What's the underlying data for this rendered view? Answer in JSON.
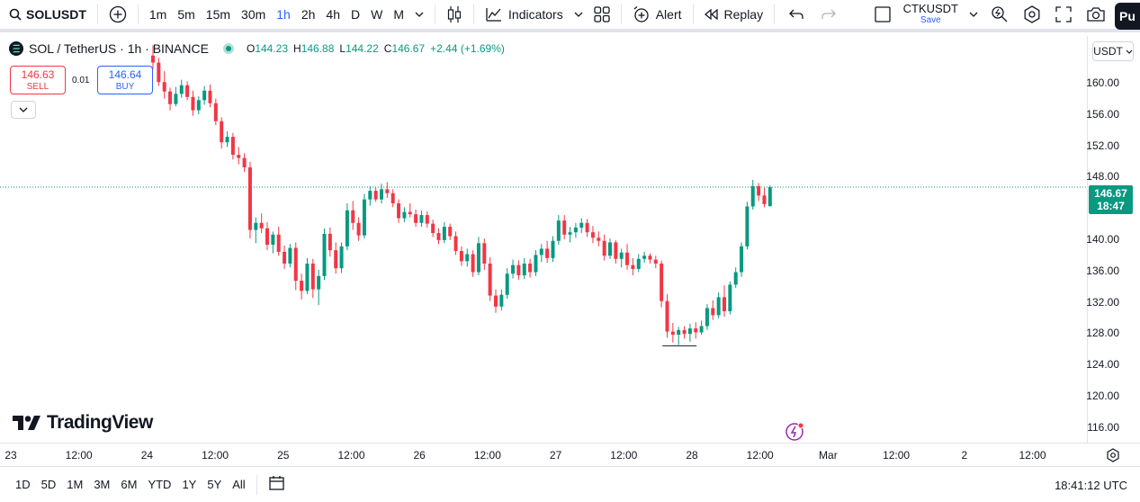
{
  "toolbar": {
    "symbol": "SOLUSDT",
    "timeframes": [
      "1m",
      "5m",
      "15m",
      "30m",
      "1h",
      "2h",
      "4h",
      "D",
      "W",
      "M"
    ],
    "active_timeframe": "1h",
    "indicators_label": "Indicators",
    "alert_label": "Alert",
    "replay_label": "Replay",
    "layout_name": "CTKUSDT",
    "layout_save": "Save",
    "publish_label": "Pu"
  },
  "legend": {
    "pair": "SOL / TetherUS · 1h · BINANCE",
    "o_label": "O",
    "o": "144.23",
    "h_label": "H",
    "h": "146.88",
    "l_label": "L",
    "l": "144.22",
    "c_label": "C",
    "c": "146.67",
    "change": "+2.44 (+1.69%)"
  },
  "trade": {
    "sell_price": "146.63",
    "sell_label": "SELL",
    "spread": "0.01",
    "buy_price": "146.64",
    "buy_label": "BUY"
  },
  "price_scale": {
    "currency": "USDT",
    "labels": [
      "160.00",
      "156.00",
      "152.00",
      "148.00",
      "140.00",
      "136.00",
      "132.00",
      "128.00",
      "124.00",
      "120.00",
      "116.00"
    ],
    "current_price": "146.67",
    "countdown": "18:47"
  },
  "time_scale": {
    "labels": [
      "23",
      "12:00",
      "24",
      "12:00",
      "25",
      "12:00",
      "26",
      "12:00",
      "27",
      "12:00",
      "28",
      "12:00",
      "Mar",
      "12:00",
      "2",
      "12:00"
    ]
  },
  "bottom": {
    "ranges": [
      "1D",
      "5D",
      "1M",
      "3M",
      "6M",
      "YTD",
      "1Y",
      "5Y",
      "All"
    ],
    "clock": "18:41:12 UTC"
  },
  "brand": "TradingView",
  "colors": {
    "up": "#089981",
    "down": "#f23645",
    "accent": "#2962ff"
  },
  "chart_data": {
    "type": "candlestick",
    "symbol": "SOL / TetherUS",
    "interval": "1h",
    "exchange": "BINANCE",
    "ylim": [
      114,
      166
    ],
    "current_price": 146.67,
    "candles": [
      [
        163.5,
        164.8,
        161.8,
        162.6
      ],
      [
        162.6,
        163.2,
        159.6,
        160.1
      ],
      [
        160.1,
        161.5,
        158.0,
        158.9
      ],
      [
        158.9,
        159.4,
        156.5,
        157.3
      ],
      [
        157.3,
        159.5,
        157.0,
        158.6
      ],
      [
        158.6,
        160.4,
        158.1,
        159.7
      ],
      [
        159.7,
        160.2,
        157.8,
        158.2
      ],
      [
        158.2,
        159.0,
        155.8,
        156.5
      ],
      [
        156.5,
        158.3,
        156.0,
        157.8
      ],
      [
        157.8,
        159.6,
        157.2,
        159.0
      ],
      [
        159.0,
        159.8,
        156.9,
        157.4
      ],
      [
        157.4,
        158.0,
        154.6,
        155.1
      ],
      [
        155.1,
        155.6,
        151.6,
        152.4
      ],
      [
        152.4,
        153.8,
        151.8,
        153.1
      ],
      [
        153.1,
        153.6,
        150.2,
        150.8
      ],
      [
        150.8,
        151.8,
        149.6,
        150.4
      ],
      [
        150.4,
        151.0,
        148.6,
        149.2
      ],
      [
        149.2,
        149.9,
        140.1,
        141.2
      ],
      [
        141.2,
        142.8,
        139.5,
        142.1
      ],
      [
        142.1,
        143.3,
        140.8,
        141.4
      ],
      [
        141.4,
        142.2,
        138.6,
        139.3
      ],
      [
        139.3,
        141.0,
        138.2,
        140.6
      ],
      [
        140.6,
        141.6,
        137.9,
        138.4
      ],
      [
        138.4,
        139.2,
        136.2,
        136.9
      ],
      [
        136.9,
        139.4,
        136.4,
        138.9
      ],
      [
        138.9,
        139.6,
        133.5,
        134.7
      ],
      [
        134.7,
        135.6,
        132.3,
        133.4
      ],
      [
        133.4,
        137.6,
        133.0,
        136.9
      ],
      [
        136.9,
        137.5,
        132.5,
        133.6
      ],
      [
        133.6,
        136.1,
        131.6,
        135.3
      ],
      [
        135.3,
        141.4,
        134.8,
        140.7
      ],
      [
        140.7,
        141.5,
        137.8,
        138.6
      ],
      [
        138.6,
        139.6,
        135.6,
        136.3
      ],
      [
        136.3,
        139.6,
        135.7,
        139.1
      ],
      [
        139.1,
        144.6,
        138.6,
        143.7
      ],
      [
        143.7,
        144.9,
        141.2,
        142.1
      ],
      [
        142.1,
        142.8,
        139.8,
        140.5
      ],
      [
        140.5,
        145.8,
        140.1,
        145.1
      ],
      [
        145.1,
        146.8,
        144.3,
        146.2
      ],
      [
        146.2,
        146.6,
        144.8,
        145.1
      ],
      [
        145.1,
        147.1,
        144.6,
        146.4
      ],
      [
        146.4,
        147.3,
        145.3,
        145.9
      ],
      [
        145.9,
        146.4,
        144.1,
        144.6
      ],
      [
        144.6,
        145.1,
        142.1,
        142.7
      ],
      [
        142.7,
        144.1,
        142.2,
        143.5
      ],
      [
        143.5,
        144.6,
        142.8,
        143.2
      ],
      [
        143.2,
        143.8,
        141.6,
        142.1
      ],
      [
        142.1,
        143.7,
        141.6,
        143.1
      ],
      [
        143.1,
        143.6,
        141.5,
        142.0
      ],
      [
        142.0,
        142.5,
        140.3,
        140.8
      ],
      [
        140.8,
        141.4,
        139.4,
        139.9
      ],
      [
        139.9,
        142.2,
        139.5,
        141.6
      ],
      [
        141.6,
        142.0,
        139.9,
        140.4
      ],
      [
        140.4,
        141.0,
        138.0,
        138.5
      ],
      [
        138.5,
        139.1,
        136.6,
        137.2
      ],
      [
        137.2,
        138.8,
        136.5,
        138.1
      ],
      [
        138.1,
        138.6,
        135.2,
        135.8
      ],
      [
        135.8,
        140.3,
        135.4,
        139.5
      ],
      [
        139.5,
        140.1,
        136.1,
        136.9
      ],
      [
        136.9,
        137.7,
        132.1,
        132.8
      ],
      [
        132.8,
        133.6,
        130.6,
        131.4
      ],
      [
        131.4,
        133.6,
        130.9,
        132.9
      ],
      [
        132.9,
        136.3,
        132.4,
        135.6
      ],
      [
        135.6,
        137.4,
        135.0,
        136.7
      ],
      [
        136.7,
        137.3,
        134.8,
        135.4
      ],
      [
        135.4,
        137.6,
        134.9,
        136.9
      ],
      [
        136.9,
        137.5,
        135.1,
        135.8
      ],
      [
        135.8,
        138.6,
        135.3,
        138.0
      ],
      [
        138.0,
        139.4,
        137.1,
        138.8
      ],
      [
        138.8,
        139.8,
        137.0,
        137.6
      ],
      [
        137.6,
        140.4,
        137.1,
        139.8
      ],
      [
        139.8,
        143.1,
        139.3,
        142.4
      ],
      [
        142.4,
        143.1,
        140.0,
        140.6
      ],
      [
        140.6,
        141.6,
        139.6,
        140.9
      ],
      [
        140.9,
        142.1,
        140.2,
        141.5
      ],
      [
        141.5,
        142.7,
        140.8,
        142.1
      ],
      [
        142.1,
        142.6,
        140.3,
        140.9
      ],
      [
        140.9,
        141.7,
        139.5,
        140.2
      ],
      [
        140.2,
        141.0,
        139.1,
        139.8
      ],
      [
        139.8,
        140.6,
        137.3,
        137.9
      ],
      [
        137.9,
        140.1,
        137.5,
        139.6
      ],
      [
        139.6,
        139.9,
        136.9,
        137.5
      ],
      [
        137.5,
        138.8,
        136.4,
        138.3
      ],
      [
        138.3,
        139.4,
        136.1,
        136.7
      ],
      [
        136.7,
        137.6,
        135.4,
        136.2
      ],
      [
        136.2,
        138.1,
        135.8,
        137.5
      ],
      [
        137.5,
        138.4,
        137.0,
        137.9
      ],
      [
        137.9,
        138.2,
        136.9,
        137.4
      ],
      [
        137.4,
        137.9,
        136.3,
        136.9
      ],
      [
        136.9,
        137.3,
        131.3,
        132.1
      ],
      [
        132.1,
        133.0,
        127.4,
        128.2
      ],
      [
        128.2,
        129.3,
        126.8,
        127.8
      ],
      [
        127.8,
        128.8,
        126.5,
        128.4
      ],
      [
        128.4,
        128.9,
        127.3,
        127.9
      ],
      [
        127.9,
        129.2,
        126.9,
        128.6
      ],
      [
        128.6,
        129.4,
        127.3,
        128.1
      ],
      [
        128.1,
        129.6,
        127.8,
        128.9
      ],
      [
        128.9,
        131.7,
        128.4,
        131.2
      ],
      [
        131.2,
        132.2,
        129.7,
        130.3
      ],
      [
        130.3,
        133.2,
        129.9,
        132.6
      ],
      [
        132.6,
        134.1,
        130.1,
        130.8
      ],
      [
        130.8,
        134.6,
        130.4,
        134.2
      ],
      [
        134.2,
        136.4,
        133.8,
        135.8
      ],
      [
        135.8,
        139.6,
        135.2,
        139.1
      ],
      [
        139.1,
        144.8,
        138.7,
        144.2
      ],
      [
        144.2,
        147.6,
        143.8,
        146.8
      ],
      [
        146.8,
        147.2,
        144.9,
        145.6
      ],
      [
        145.6,
        146.6,
        144.1,
        144.5
      ],
      [
        144.23,
        146.88,
        144.22,
        146.67
      ]
    ],
    "time_axis_labels": [
      "23",
      "12:00",
      "24",
      "12:00",
      "25",
      "12:00",
      "26",
      "12:00",
      "27",
      "12:00",
      "28",
      "12:00",
      "Mar",
      "12:00",
      "2",
      "12:00"
    ],
    "price_axis_labels": [
      160,
      156,
      152,
      148,
      140,
      136,
      132,
      128,
      124,
      120,
      116
    ]
  }
}
